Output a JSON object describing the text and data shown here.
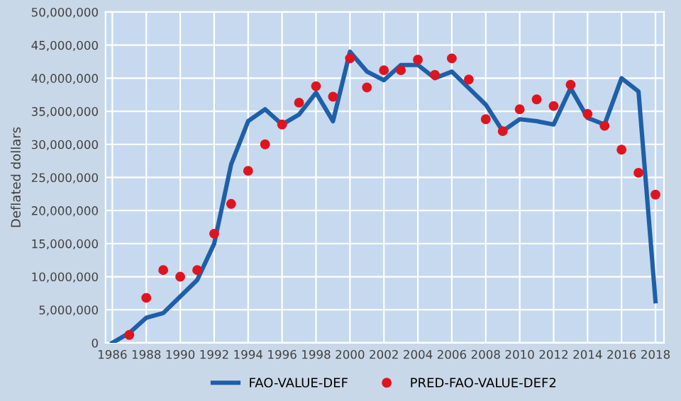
{
  "chart_data": {
    "type": "line",
    "ylabel": "Deflated dollars",
    "x": [
      1986,
      1987,
      1988,
      1989,
      1990,
      1991,
      1992,
      1993,
      1994,
      1995,
      1996,
      1997,
      1998,
      1999,
      2000,
      2001,
      2002,
      2003,
      2004,
      2005,
      2006,
      2007,
      2008,
      2009,
      2010,
      2011,
      2012,
      2013,
      2014,
      2015,
      2016,
      2017,
      2018
    ],
    "series": [
      {
        "name": "FAO-VALUE-DEF",
        "color": "#1f5fa8",
        "values": [
          0,
          1500000,
          3800000,
          4500000,
          7000000,
          9500000,
          15000000,
          27000000,
          33500000,
          35300000,
          33000000,
          34500000,
          37800000,
          33500000,
          44000000,
          41000000,
          39700000,
          42000000,
          42000000,
          40000000,
          41000000,
          38500000,
          36000000,
          32000000,
          33800000,
          33500000,
          33000000,
          38500000,
          34000000,
          33000000,
          40000000,
          38000000,
          6300000
        ]
      },
      {
        "name": "PRED-FAO-VALUE-DEF2",
        "type": "scatter",
        "marker": "circle",
        "color": "#e0141e",
        "values": [
          null,
          1200000,
          6800000,
          11000000,
          10000000,
          11000000,
          16500000,
          21000000,
          26000000,
          30000000,
          33000000,
          36300000,
          38800000,
          37200000,
          43000000,
          38600000,
          41200000,
          41200000,
          42800000,
          40500000,
          43000000,
          39800000,
          33800000,
          32000000,
          35300000,
          36800000,
          35800000,
          39000000,
          34600000,
          32800000,
          29200000,
          25700000,
          22400000
        ]
      }
    ],
    "xlim": [
      1985.6,
      2018.5
    ],
    "xticks": [
      1986,
      1988,
      1990,
      1992,
      1994,
      1996,
      1998,
      2000,
      2002,
      2004,
      2006,
      2008,
      2010,
      2012,
      2014,
      2016,
      2018
    ],
    "ylim": [
      0,
      50000000
    ],
    "yticks": [
      {
        "value": 0,
        "label": "0"
      },
      {
        "value": 5000000,
        "label": "5,000,000"
      },
      {
        "value": 10000000,
        "label": "10,000,000"
      },
      {
        "value": 15000000,
        "label": "15,000,000"
      },
      {
        "value": 20000000,
        "label": "20,000,000"
      },
      {
        "value": 25000000,
        "label": "25,000,000"
      },
      {
        "value": 30000000,
        "label": "30,000,000"
      },
      {
        "value": 35000000,
        "label": "35,000,000"
      },
      {
        "value": 40000000,
        "label": "40,000,000"
      },
      {
        "value": 45000000,
        "label": "45,000,000"
      },
      {
        "value": 50000000,
        "label": "50,000,000"
      }
    ],
    "grid": true,
    "legend": "bottom"
  }
}
